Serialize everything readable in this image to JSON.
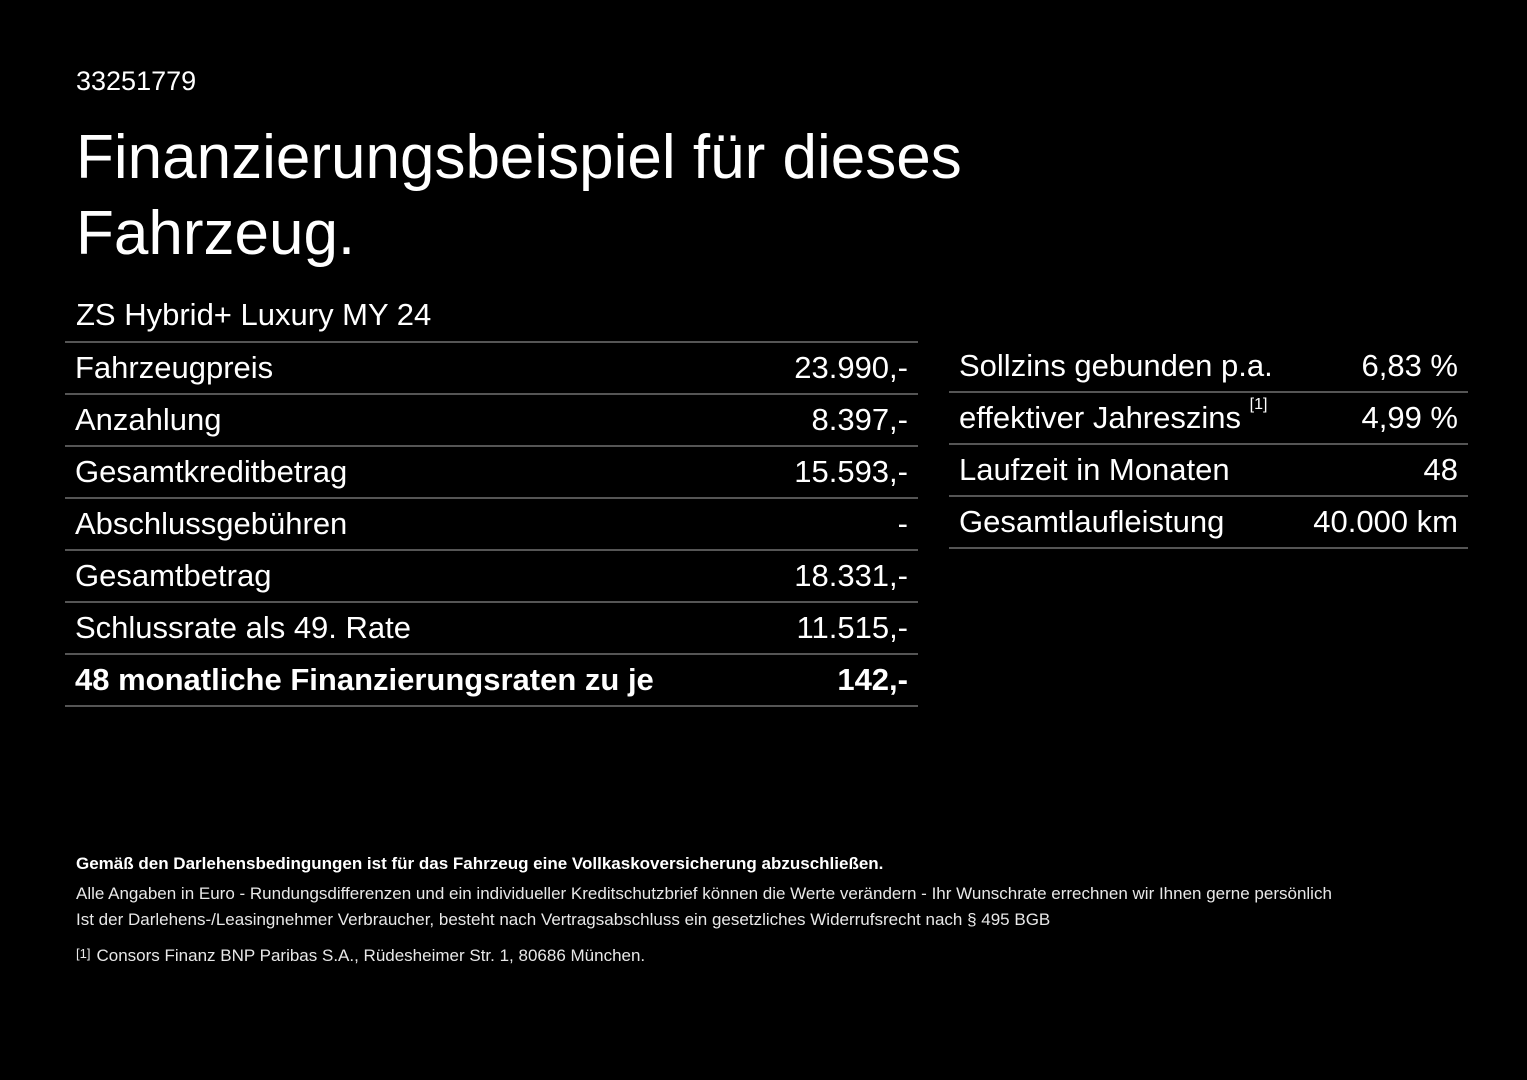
{
  "reference_number": "33251779",
  "title": "Finanzierungsbeispiel für dieses Fahrzeug.",
  "model": "ZS Hybrid+ Luxury MY 24",
  "left_table": [
    {
      "label": "Fahrzeugpreis",
      "value": "23.990,-"
    },
    {
      "label": "Anzahlung",
      "value": "8.397,-"
    },
    {
      "label": "Gesamtkreditbetrag",
      "value": "15.593,-"
    },
    {
      "label": "Abschlussgebühren",
      "value": "-"
    },
    {
      "label": "Gesamtbetrag",
      "value": "18.331,-"
    },
    {
      "label": "Schlussrate als 49. Rate",
      "value": "11.515,-"
    },
    {
      "label": "48 monatliche Finanzierungsraten zu je",
      "value": "142,-"
    }
  ],
  "right_table": [
    {
      "label": "Sollzins gebunden p.a.",
      "value": "6,83 %"
    },
    {
      "label": "effektiver Jahreszins",
      "footnote": "[1]",
      "value": "4,99 %"
    },
    {
      "label": "Laufzeit in Monaten",
      "value": "48"
    },
    {
      "label": "Gesamtlaufleistung",
      "value": "40.000 km"
    }
  ],
  "footer": {
    "insurance_note": "Gemäß den Darlehensbedingungen ist für das Fahrzeug eine Vollkaskoversicherung abzuschließen.",
    "euro_note": "Alle Angaben in Euro - Rundungsdifferenzen und ein individueller Kreditschutzbrief können die Werte verändern - Ihr Wunschrate errechnen wir Ihnen gerne persönlich",
    "withdrawal_note": "Ist der Darlehens-/Leasingnehmer Verbraucher, besteht nach Vertragsabschluss ein gesetzliches Widerrufsrecht nach § 495 BGB",
    "footnote_marker": "[1]",
    "footnote_text": "Consors Finanz BNP Paribas S.A., Rüdesheimer Str. 1, 80686 München."
  }
}
